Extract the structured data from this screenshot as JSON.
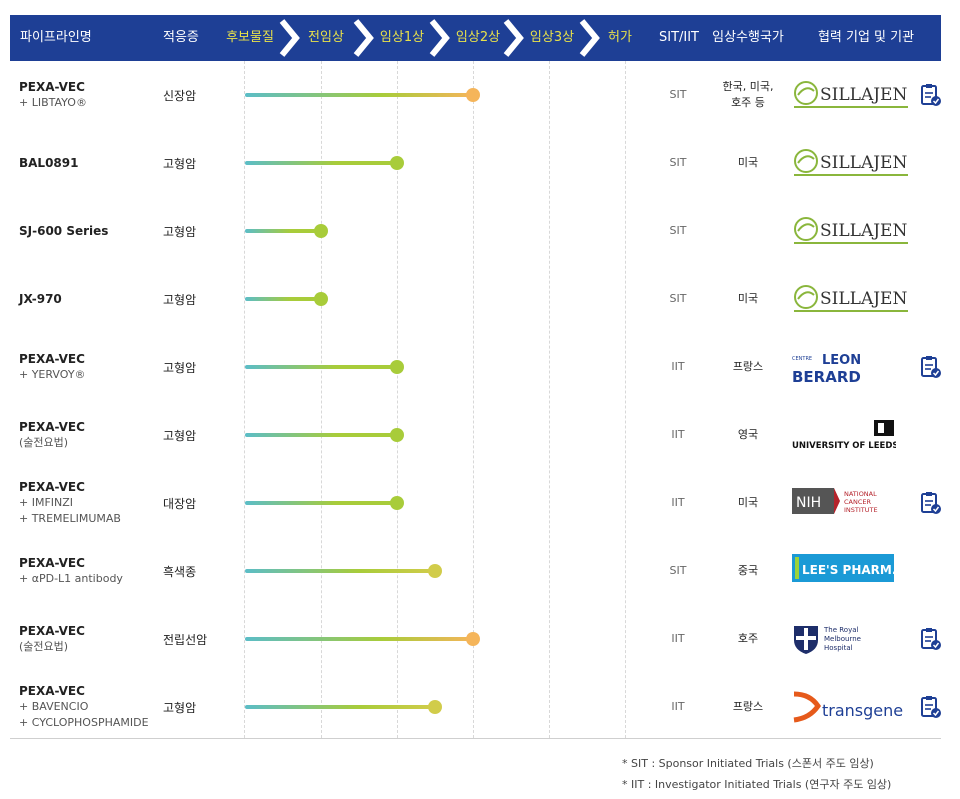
{
  "header": {
    "col_pipeline": "파이프라인명",
    "col_indication": "적응증",
    "stages": [
      "후보물질",
      "전임상",
      "임상1상",
      "임상2상",
      "임상3상",
      "허가"
    ],
    "col_sit": "SIT/IIT",
    "col_country": "임상수행국가",
    "col_partner": "협력 기업 및 기관"
  },
  "colors": {
    "header_bg": "#1e3f95",
    "stage_text": "#e8e14a",
    "bar_start": "#5bbdc7",
    "bar_mid": "#a8cc3a",
    "dot_phase1": "#a8cc3a",
    "dot_phase2": "#d1cc4a",
    "dot_phase2_late": "#f5b55a"
  },
  "rows": [
    {
      "name": "PEXA-VEC",
      "sub": [
        "+ LIBTAYO®"
      ],
      "indication": "신장암",
      "progress": "임상2상",
      "progress_fraction": 1.0,
      "type": "SIT",
      "country": [
        "한국, 미국,",
        "호주 등"
      ],
      "partner": "SILLAJEN",
      "partner_icon": "sillajen-logo",
      "doc": true
    },
    {
      "name": "BAL0891",
      "sub": [],
      "indication": "고형암",
      "progress": "임상1상",
      "progress_fraction": 1.0,
      "type": "SIT",
      "country": [
        "미국"
      ],
      "partner": "SILLAJEN",
      "partner_icon": "sillajen-logo",
      "doc": false
    },
    {
      "name": "SJ-600 Series",
      "sub": [],
      "indication": "고형암",
      "progress": "전임상",
      "progress_fraction": 1.0,
      "type": "SIT",
      "country": [],
      "partner": "SILLAJEN",
      "partner_icon": "sillajen-logo",
      "doc": false
    },
    {
      "name": "JX-970",
      "sub": [],
      "indication": "고형암",
      "progress": "전임상",
      "progress_fraction": 1.0,
      "type": "SIT",
      "country": [
        "미국"
      ],
      "partner": "SILLAJEN",
      "partner_icon": "sillajen-logo",
      "doc": false
    },
    {
      "name": "PEXA-VEC",
      "sub": [
        "+ YERVOY®"
      ],
      "indication": "고형암",
      "progress": "임상1상",
      "progress_fraction": 1.0,
      "type": "IIT",
      "country": [
        "프랑스"
      ],
      "partner": "LEON BERARD",
      "partner_icon": "leon-berard-logo",
      "doc": true
    },
    {
      "name": "PEXA-VEC",
      "sub": [
        "(술전요법)"
      ],
      "indication": "고형암",
      "progress": "임상1상",
      "progress_fraction": 1.0,
      "type": "IIT",
      "country": [
        "영국"
      ],
      "partner": "UNIVERSITY OF LEEDS",
      "partner_icon": "leeds-logo",
      "doc": false
    },
    {
      "name": "PEXA-VEC",
      "sub": [
        "+ IMFINZI",
        "+ TREMELIMUMAB"
      ],
      "indication": "대장암",
      "progress": "임상1상",
      "progress_fraction": 1.0,
      "type": "IIT",
      "country": [
        "미국"
      ],
      "partner": "NIH NATIONAL CANCER INSTITUTE",
      "partner_icon": "nih-logo",
      "doc": true
    },
    {
      "name": "PEXA-VEC",
      "sub": [
        "+ αPD-L1 antibody"
      ],
      "indication": "흑색종",
      "progress": "임상2상",
      "progress_fraction": 0.5,
      "type": "SIT",
      "country": [
        "중국"
      ],
      "partner": "LEE'S PHARM.",
      "partner_icon": "lees-pharm-logo",
      "doc": false
    },
    {
      "name": "PEXA-VEC",
      "sub": [
        "(술전요법)"
      ],
      "indication": "전립선암",
      "progress": "임상2상",
      "progress_fraction": 1.0,
      "type": "IIT",
      "country": [
        "호주"
      ],
      "partner": "The Royal Melbourne Hospital",
      "partner_icon": "royal-melbourne-logo",
      "doc": true
    },
    {
      "name": "PEXA-VEC",
      "sub": [
        "+ BAVENCIO",
        "+ CYCLOPHOSPHAMIDE"
      ],
      "indication": "고형암",
      "progress": "임상2상",
      "progress_fraction": 0.5,
      "type": "IIT",
      "country": [
        "프랑스"
      ],
      "partner": "transgene",
      "partner_icon": "transgene-logo",
      "doc": true
    }
  ],
  "notes": [
    "* SIT : Sponsor Initiated Trials (스폰서 주도 임상)",
    "* IIT : Investigator Initiated Trials (연구자 주도 임상)"
  ]
}
